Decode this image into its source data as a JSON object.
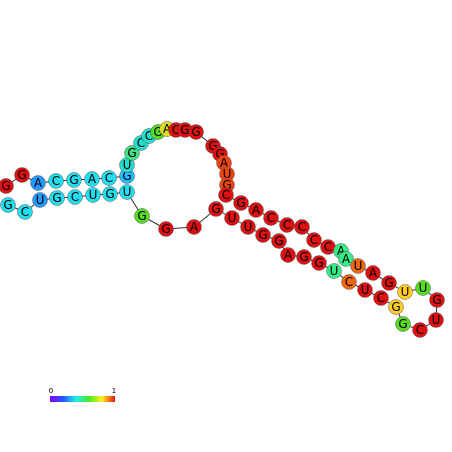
{
  "nodes": [
    {
      "label": "G",
      "color": "#dd1111"
    },
    {
      "label": "G",
      "color": "#dd1111"
    },
    {
      "label": "A",
      "color": "#2299ff"
    },
    {
      "label": "C",
      "color": "#22ddee"
    },
    {
      "label": "G",
      "color": "#22ddee"
    },
    {
      "label": "A",
      "color": "#22ddee"
    },
    {
      "label": "C",
      "color": "#22ddee"
    },
    {
      "label": "G",
      "color": "#22bbff"
    },
    {
      "label": "U",
      "color": "#22ddcc"
    },
    {
      "label": "G",
      "color": "#44dd88"
    },
    {
      "label": "C",
      "color": "#22ddcc"
    },
    {
      "label": "C",
      "color": "#22ddcc"
    },
    {
      "label": "G",
      "color": "#55dd22"
    },
    {
      "label": "A",
      "color": "#dddd22"
    },
    {
      "label": "C",
      "color": "#dd1111"
    },
    {
      "label": "G",
      "color": "#dd1111"
    },
    {
      "label": "G",
      "color": "#dd1111"
    },
    {
      "label": "G",
      "color": "#dd1111"
    },
    {
      "label": "G",
      "color": "#dd1111"
    },
    {
      "label": "A",
      "color": "#ee4411"
    },
    {
      "label": "U",
      "color": "#ee4411"
    },
    {
      "label": "G",
      "color": "#ee4411"
    },
    {
      "label": "C",
      "color": "#dd1111"
    },
    {
      "label": "G",
      "color": "#dd1111"
    },
    {
      "label": "A",
      "color": "#dd1111"
    },
    {
      "label": "C",
      "color": "#dd1111"
    },
    {
      "label": "C",
      "color": "#dd1111"
    },
    {
      "label": "C",
      "color": "#dd1111"
    },
    {
      "label": "C",
      "color": "#dd1111"
    },
    {
      "label": "C",
      "color": "#dd1111"
    },
    {
      "label": "A",
      "color": "#33ee88"
    },
    {
      "label": "A",
      "color": "#33ee88"
    },
    {
      "label": "U",
      "color": "#ee6611"
    },
    {
      "label": "A",
      "color": "#dd1111"
    },
    {
      "label": "G",
      "color": "#dd1111"
    },
    {
      "label": "U",
      "color": "#ffcc22"
    },
    {
      "label": "U",
      "color": "#55dd22"
    },
    {
      "label": "G",
      "color": "#dd1111"
    },
    {
      "label": "U",
      "color": "#dd1111"
    },
    {
      "label": "C",
      "color": "#dd1111"
    },
    {
      "label": "G",
      "color": "#55dd22"
    },
    {
      "label": "G",
      "color": "#ffcc22"
    },
    {
      "label": "C",
      "color": "#dd1111"
    },
    {
      "label": "U",
      "color": "#dd1111"
    },
    {
      "label": "C",
      "color": "#ee6611"
    },
    {
      "label": "U",
      "color": "#33ee88"
    },
    {
      "label": "G",
      "color": "#dd1111"
    },
    {
      "label": "G",
      "color": "#dd1111"
    },
    {
      "label": "A",
      "color": "#dd1111"
    },
    {
      "label": "G",
      "color": "#dd1111"
    },
    {
      "label": "G",
      "color": "#dd1111"
    },
    {
      "label": "U",
      "color": "#dd1111"
    },
    {
      "label": "U",
      "color": "#dd1111"
    },
    {
      "label": "G",
      "color": "#dd1111"
    },
    {
      "label": "A",
      "color": "#dd1111"
    },
    {
      "label": "G",
      "color": "#dd1111"
    },
    {
      "label": "G",
      "color": "#55dd22"
    },
    {
      "label": "U",
      "color": "#22ddee"
    },
    {
      "label": "G",
      "color": "#22ddee"
    },
    {
      "label": "U",
      "color": "#22ddee"
    },
    {
      "label": "C",
      "color": "#22ddee"
    },
    {
      "label": "G",
      "color": "#22ddee"
    },
    {
      "label": "U",
      "color": "#2299ff"
    },
    {
      "label": "C",
      "color": "#22ddee"
    },
    {
      "label": "G",
      "color": "#22ddee"
    }
  ],
  "legend": {
    "min_label": "0",
    "max_label": "1"
  }
}
